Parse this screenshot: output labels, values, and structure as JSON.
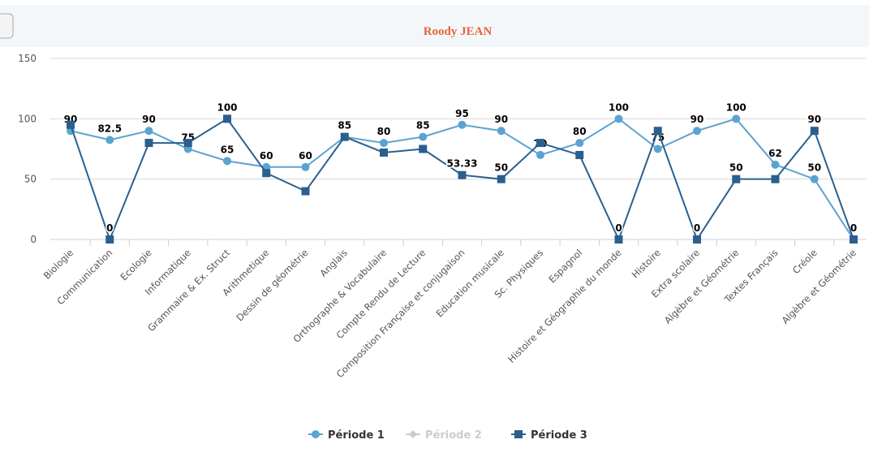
{
  "chart_data": {
    "type": "line",
    "title": "Roody JEAN",
    "categories": [
      "Biologie",
      "Communication",
      "Ecologie",
      "Informatique",
      "Grammaire & Ex. Struct",
      "Arithmetique",
      "Dessin de géométrie",
      "Anglais",
      "Orthographe & Vocabulaire",
      "Compte Rendu de Lecture",
      "Composition Française et conjugaison",
      "Education musicale",
      "Sc. Physiques",
      "Espagnol",
      "Histoire et Géographie du monde",
      "Histoire",
      "Extra scolaire",
      "Algèbre et Géométrie",
      "Textes Français",
      "Créole",
      "Algèbre et Géométrie"
    ],
    "series": [
      {
        "name": "Période 1",
        "color": "#5ba3d0",
        "marker": "circle",
        "values": [
          90,
          82.5,
          90,
          75,
          65,
          60,
          60,
          85,
          80,
          85,
          95,
          90,
          70,
          80,
          100,
          75,
          90,
          100,
          62,
          50,
          0
        ]
      },
      {
        "name": "Période 2",
        "color": "#cccccc",
        "marker": "diamond",
        "visible": false
      },
      {
        "name": "Période 3",
        "color": "#2a5f8e",
        "marker": "square",
        "values": [
          95,
          0,
          80,
          80,
          100,
          55,
          40,
          85,
          72,
          75,
          53.33,
          50,
          80,
          70,
          0,
          90,
          0,
          50,
          50,
          90,
          0
        ]
      }
    ],
    "ylim": [
      0,
      150
    ],
    "yticks": [
      0,
      50,
      100,
      150
    ],
    "grid": true,
    "legend": "bottom"
  }
}
